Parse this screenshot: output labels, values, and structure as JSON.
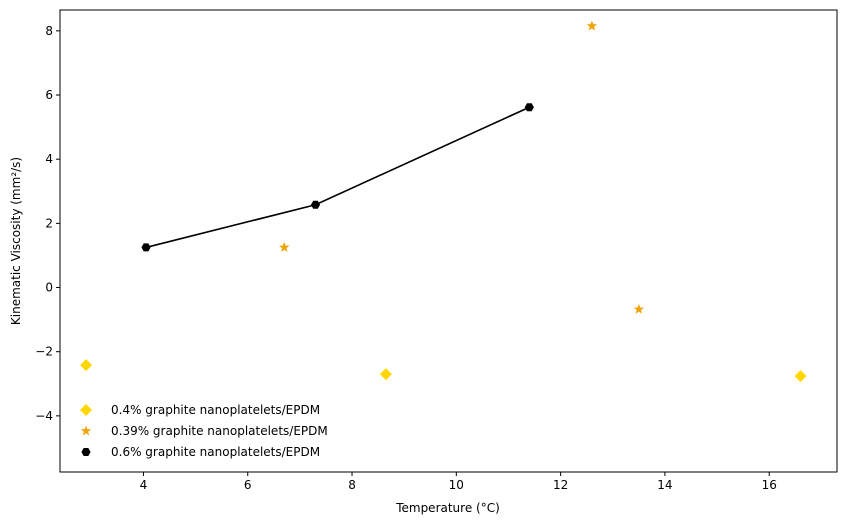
{
  "chart_data": {
    "type": "scatter",
    "title": "",
    "xlabel": "Temperature (°C)",
    "ylabel": "Kinematic Viscosity (mm²/s)",
    "xlim": [
      2.4,
      17.3
    ],
    "ylim": [
      -5.75,
      8.65
    ],
    "xticks": [
      4,
      6,
      8,
      10,
      12,
      14,
      16
    ],
    "yticks": [
      -4,
      -2,
      0,
      2,
      4,
      6,
      8
    ],
    "grid": false,
    "legend_position": "lower-left",
    "series": [
      {
        "name": "0.4% graphite nanoplatelets/EPDM",
        "marker": "diamond",
        "color": "#FFD700",
        "line": false,
        "points": [
          [
            2.9,
            -2.42
          ],
          [
            8.65,
            -2.7
          ],
          [
            16.6,
            -2.76
          ]
        ]
      },
      {
        "name": "0.39% graphite nanoplatelets/EPDM",
        "marker": "star",
        "color": "#F0A30A",
        "line": false,
        "points": [
          [
            6.7,
            1.25
          ],
          [
            12.6,
            8.15
          ],
          [
            13.5,
            -0.68
          ]
        ]
      },
      {
        "name": "0.6% graphite nanoplatelets/EPDM",
        "marker": "hexagon",
        "color": "#000000",
        "line": true,
        "points": [
          [
            4.05,
            1.25
          ],
          [
            7.3,
            2.58
          ],
          [
            11.4,
            5.62
          ]
        ]
      }
    ]
  }
}
